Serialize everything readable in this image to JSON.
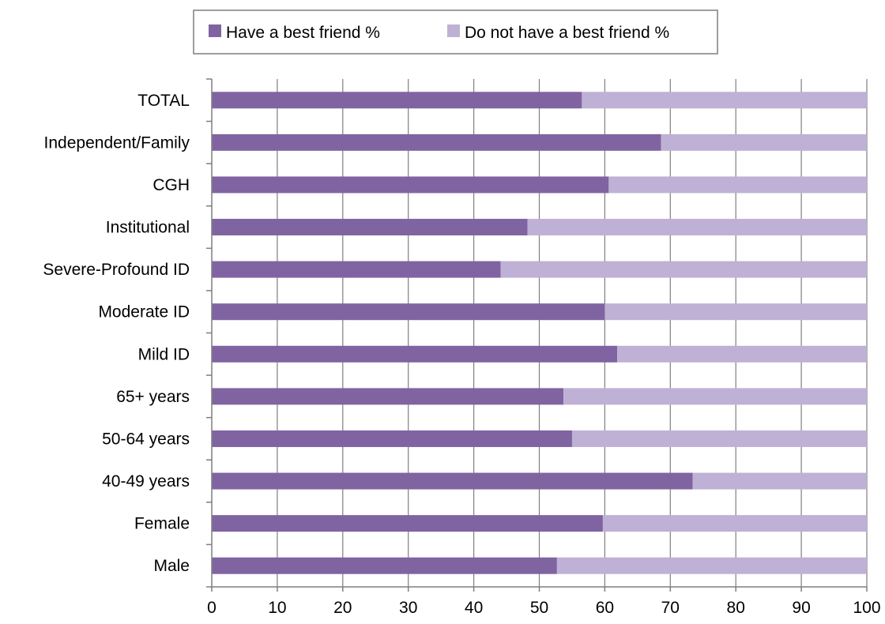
{
  "chart_data": {
    "type": "bar",
    "orientation": "horizontal",
    "stacked": true,
    "categories": [
      "TOTAL",
      "Independent/Family",
      "CGH",
      "Institutional",
      "Severe-Profound  ID",
      "Moderate ID",
      "Mild ID",
      "65+ years",
      "50-64 years",
      "40-49 years",
      "Female",
      "Male"
    ],
    "series": [
      {
        "name": "Have a best friend %",
        "color": "#8064a2",
        "values": [
          56.5,
          68.6,
          60.6,
          48.2,
          44.1,
          60.0,
          61.9,
          53.7,
          55.0,
          73.4,
          59.7,
          52.7
        ]
      },
      {
        "name": "Do not have a best friend %",
        "color": "#bfb1d5",
        "values": [
          43.5,
          31.4,
          39.4,
          51.8,
          55.9,
          40.0,
          38.1,
          46.3,
          45.0,
          26.6,
          40.3,
          47.3
        ]
      }
    ],
    "xlim": [
      0,
      100
    ],
    "xticks": [
      "0",
      "10",
      "20",
      "30",
      "40",
      "50",
      "60",
      "70",
      "80",
      "90",
      "100"
    ],
    "grid": true,
    "legend_position": "top"
  }
}
